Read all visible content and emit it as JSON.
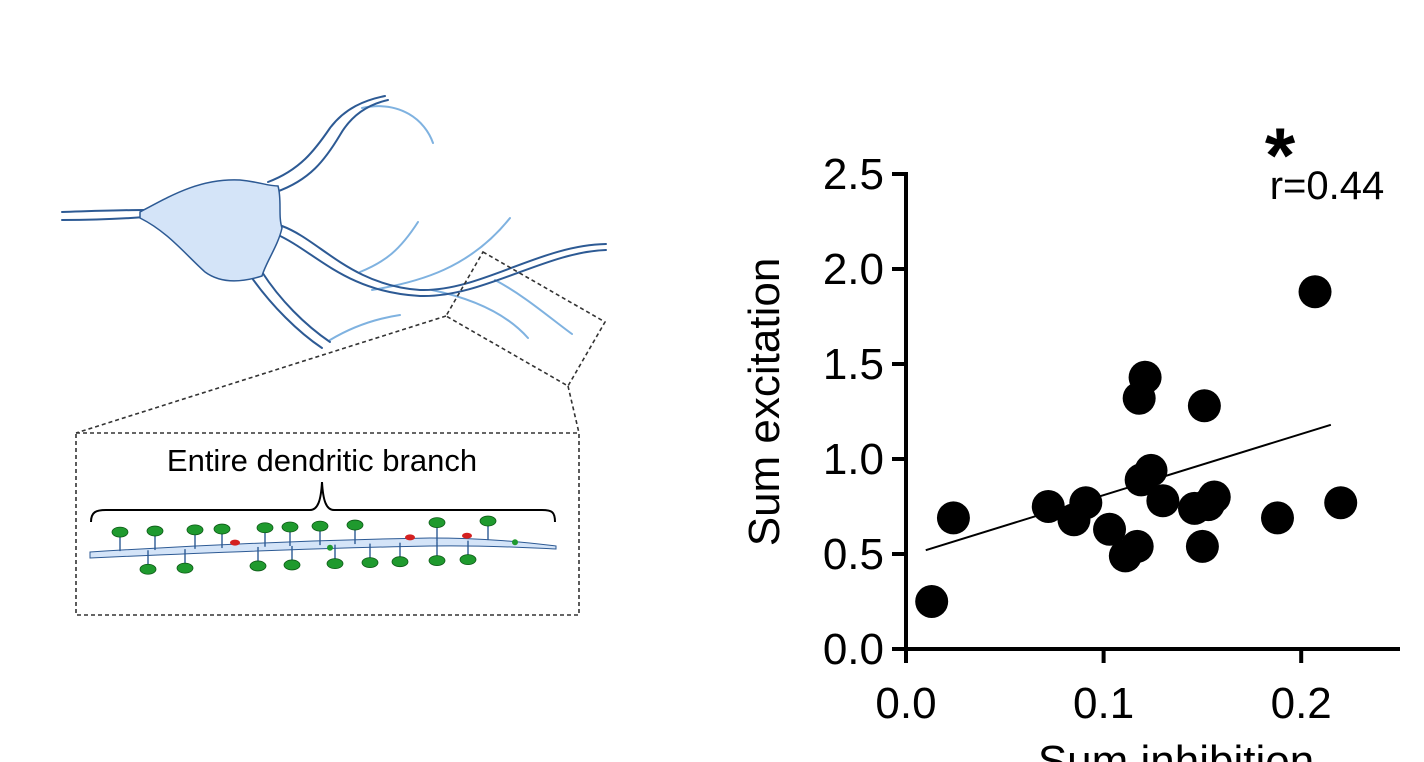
{
  "illustration": {
    "zoom_label": "Entire dendritic branch",
    "colors": {
      "neuron_fill": "#d4e4f8",
      "neuron_outline": "#2d5a94",
      "thin_dendrite": "#7fb2e0",
      "excitatory_spine": "#1f9a2e",
      "inhibitory_synapse": "#d42020"
    }
  },
  "chart_data": {
    "type": "scatter",
    "title": "",
    "xlabel": "Sum inhibition",
    "ylabel": "Sum excitation",
    "xlim": [
      0.0,
      0.25
    ],
    "ylim": [
      0.0,
      2.5
    ],
    "xticks": [
      0.0,
      0.1,
      0.2
    ],
    "xtick_labels": [
      "0.0",
      "0.1",
      "0.2"
    ],
    "yticks": [
      0.0,
      0.5,
      1.0,
      1.5,
      2.0,
      2.5
    ],
    "ytick_labels": [
      "0.0",
      "0.5",
      "1.0",
      "1.5",
      "2.0",
      "2.5"
    ],
    "grid": false,
    "points": [
      {
        "x": 0.013,
        "y": 0.25
      },
      {
        "x": 0.024,
        "y": 0.69
      },
      {
        "x": 0.072,
        "y": 0.75
      },
      {
        "x": 0.085,
        "y": 0.68
      },
      {
        "x": 0.091,
        "y": 0.77
      },
      {
        "x": 0.103,
        "y": 0.63
      },
      {
        "x": 0.111,
        "y": 0.49
      },
      {
        "x": 0.117,
        "y": 0.54
      },
      {
        "x": 0.118,
        "y": 1.32
      },
      {
        "x": 0.121,
        "y": 1.43
      },
      {
        "x": 0.119,
        "y": 0.89
      },
      {
        "x": 0.124,
        "y": 0.94
      },
      {
        "x": 0.13,
        "y": 0.78
      },
      {
        "x": 0.146,
        "y": 0.74
      },
      {
        "x": 0.15,
        "y": 0.54
      },
      {
        "x": 0.151,
        "y": 1.28
      },
      {
        "x": 0.153,
        "y": 0.76
      },
      {
        "x": 0.156,
        "y": 0.8
      },
      {
        "x": 0.188,
        "y": 0.69
      },
      {
        "x": 0.207,
        "y": 1.88
      },
      {
        "x": 0.22,
        "y": 0.77
      }
    ],
    "fit_line": {
      "x": [
        0.01,
        0.215
      ],
      "y": [
        0.52,
        1.18
      ]
    },
    "annotation": {
      "significance": "*",
      "r_text": "r=0.44"
    },
    "colors": {
      "points": "#000000",
      "fit_line": "#000000",
      "axis": "#000000"
    }
  }
}
